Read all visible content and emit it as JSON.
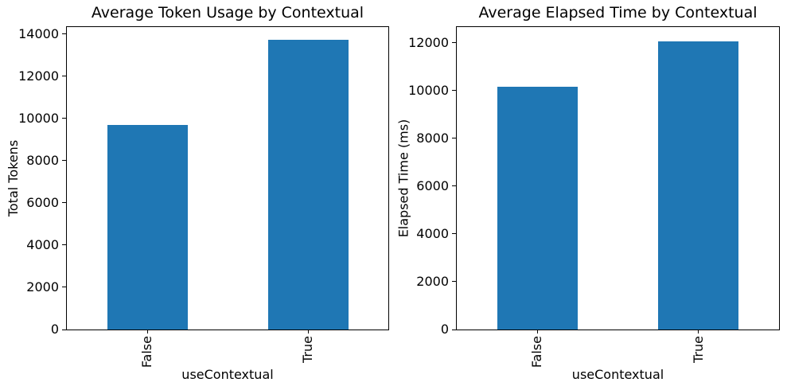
{
  "figure": {
    "background_color": "#ffffff",
    "text_color": "#000000",
    "spine_color": "#000000"
  },
  "chart_data": [
    {
      "type": "bar",
      "title": "Average Token Usage by Contextual",
      "xlabel": "useContextual",
      "ylabel": "Total Tokens",
      "categories": [
        "False",
        "True"
      ],
      "values": [
        9700,
        13710
      ],
      "ylim": [
        0,
        14330
      ],
      "ytick_step": 2000,
      "ytick_labels": [
        "0",
        "2000",
        "4000",
        "6000",
        "8000",
        "10000",
        "12000",
        "14000"
      ],
      "bar_color": "#1f77b4",
      "grid": false,
      "legend": null,
      "xtick_rotation_deg": 90
    },
    {
      "type": "bar",
      "title": "Average Elapsed Time by Contextual",
      "xlabel": "useContextual",
      "ylabel": "Elapsed Time (ms)",
      "categories": [
        "False",
        "True"
      ],
      "values": [
        10170,
        12060
      ],
      "ylim": [
        0,
        12650
      ],
      "ytick_step": 2000,
      "ytick_labels": [
        "0",
        "2000",
        "4000",
        "6000",
        "8000",
        "10000",
        "12000"
      ],
      "bar_color": "#1f77b4",
      "grid": false,
      "legend": null,
      "xtick_rotation_deg": 90
    }
  ]
}
